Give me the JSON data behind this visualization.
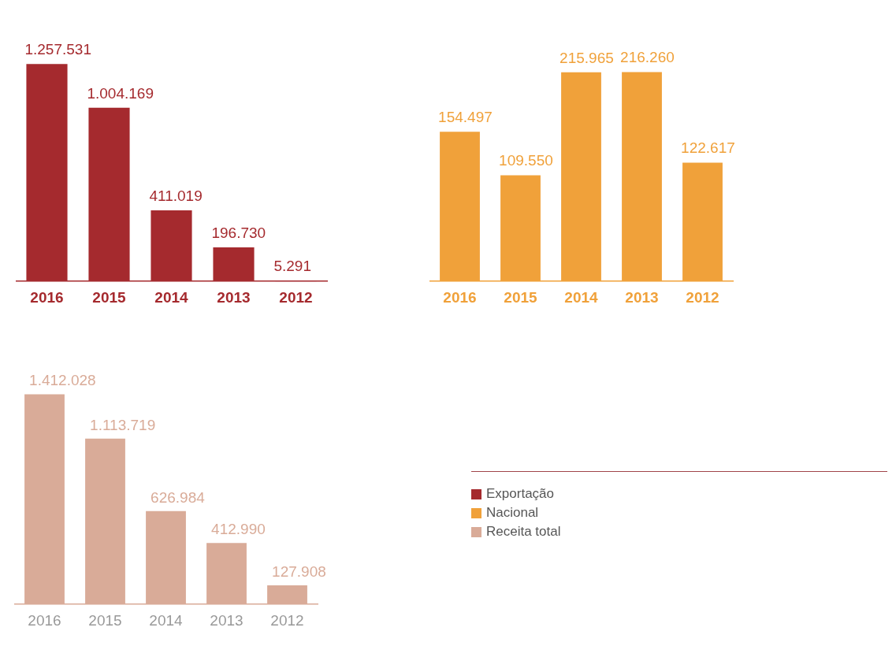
{
  "chart_data": [
    {
      "type": "bar",
      "categories": [
        "2016",
        "2015",
        "2014",
        "2013",
        "2012"
      ],
      "series": [
        {
          "name": "Exportação",
          "color": "#a52a2e",
          "values": [
            1257531,
            1004169,
            411019,
            196730,
            5291
          ],
          "value_labels": [
            "1.257.531",
            "1.004.169",
            "411.019",
            "196.730",
            "5.291"
          ]
        }
      ]
    },
    {
      "type": "bar",
      "categories": [
        "2016",
        "2015",
        "2014",
        "2013",
        "2012"
      ],
      "series": [
        {
          "name": "Nacional",
          "color": "#f0a13a",
          "values": [
            154497,
            109550,
            215965,
            216260,
            122617
          ],
          "value_labels": [
            "154.497",
            "109.550",
            "215.965",
            "216.260",
            "122.617"
          ]
        }
      ]
    },
    {
      "type": "bar",
      "categories": [
        "2016",
        "2015",
        "2014",
        "2013",
        "2012"
      ],
      "legend": "right",
      "series": [
        {
          "name": "Receita total",
          "color": "#d9ab98",
          "values": [
            1412028,
            1113719,
            626984,
            412990,
            127908
          ],
          "value_labels": [
            "1.412.028",
            "1.113.719",
            "626.984",
            "412.990",
            "127.908"
          ]
        }
      ]
    }
  ]
}
